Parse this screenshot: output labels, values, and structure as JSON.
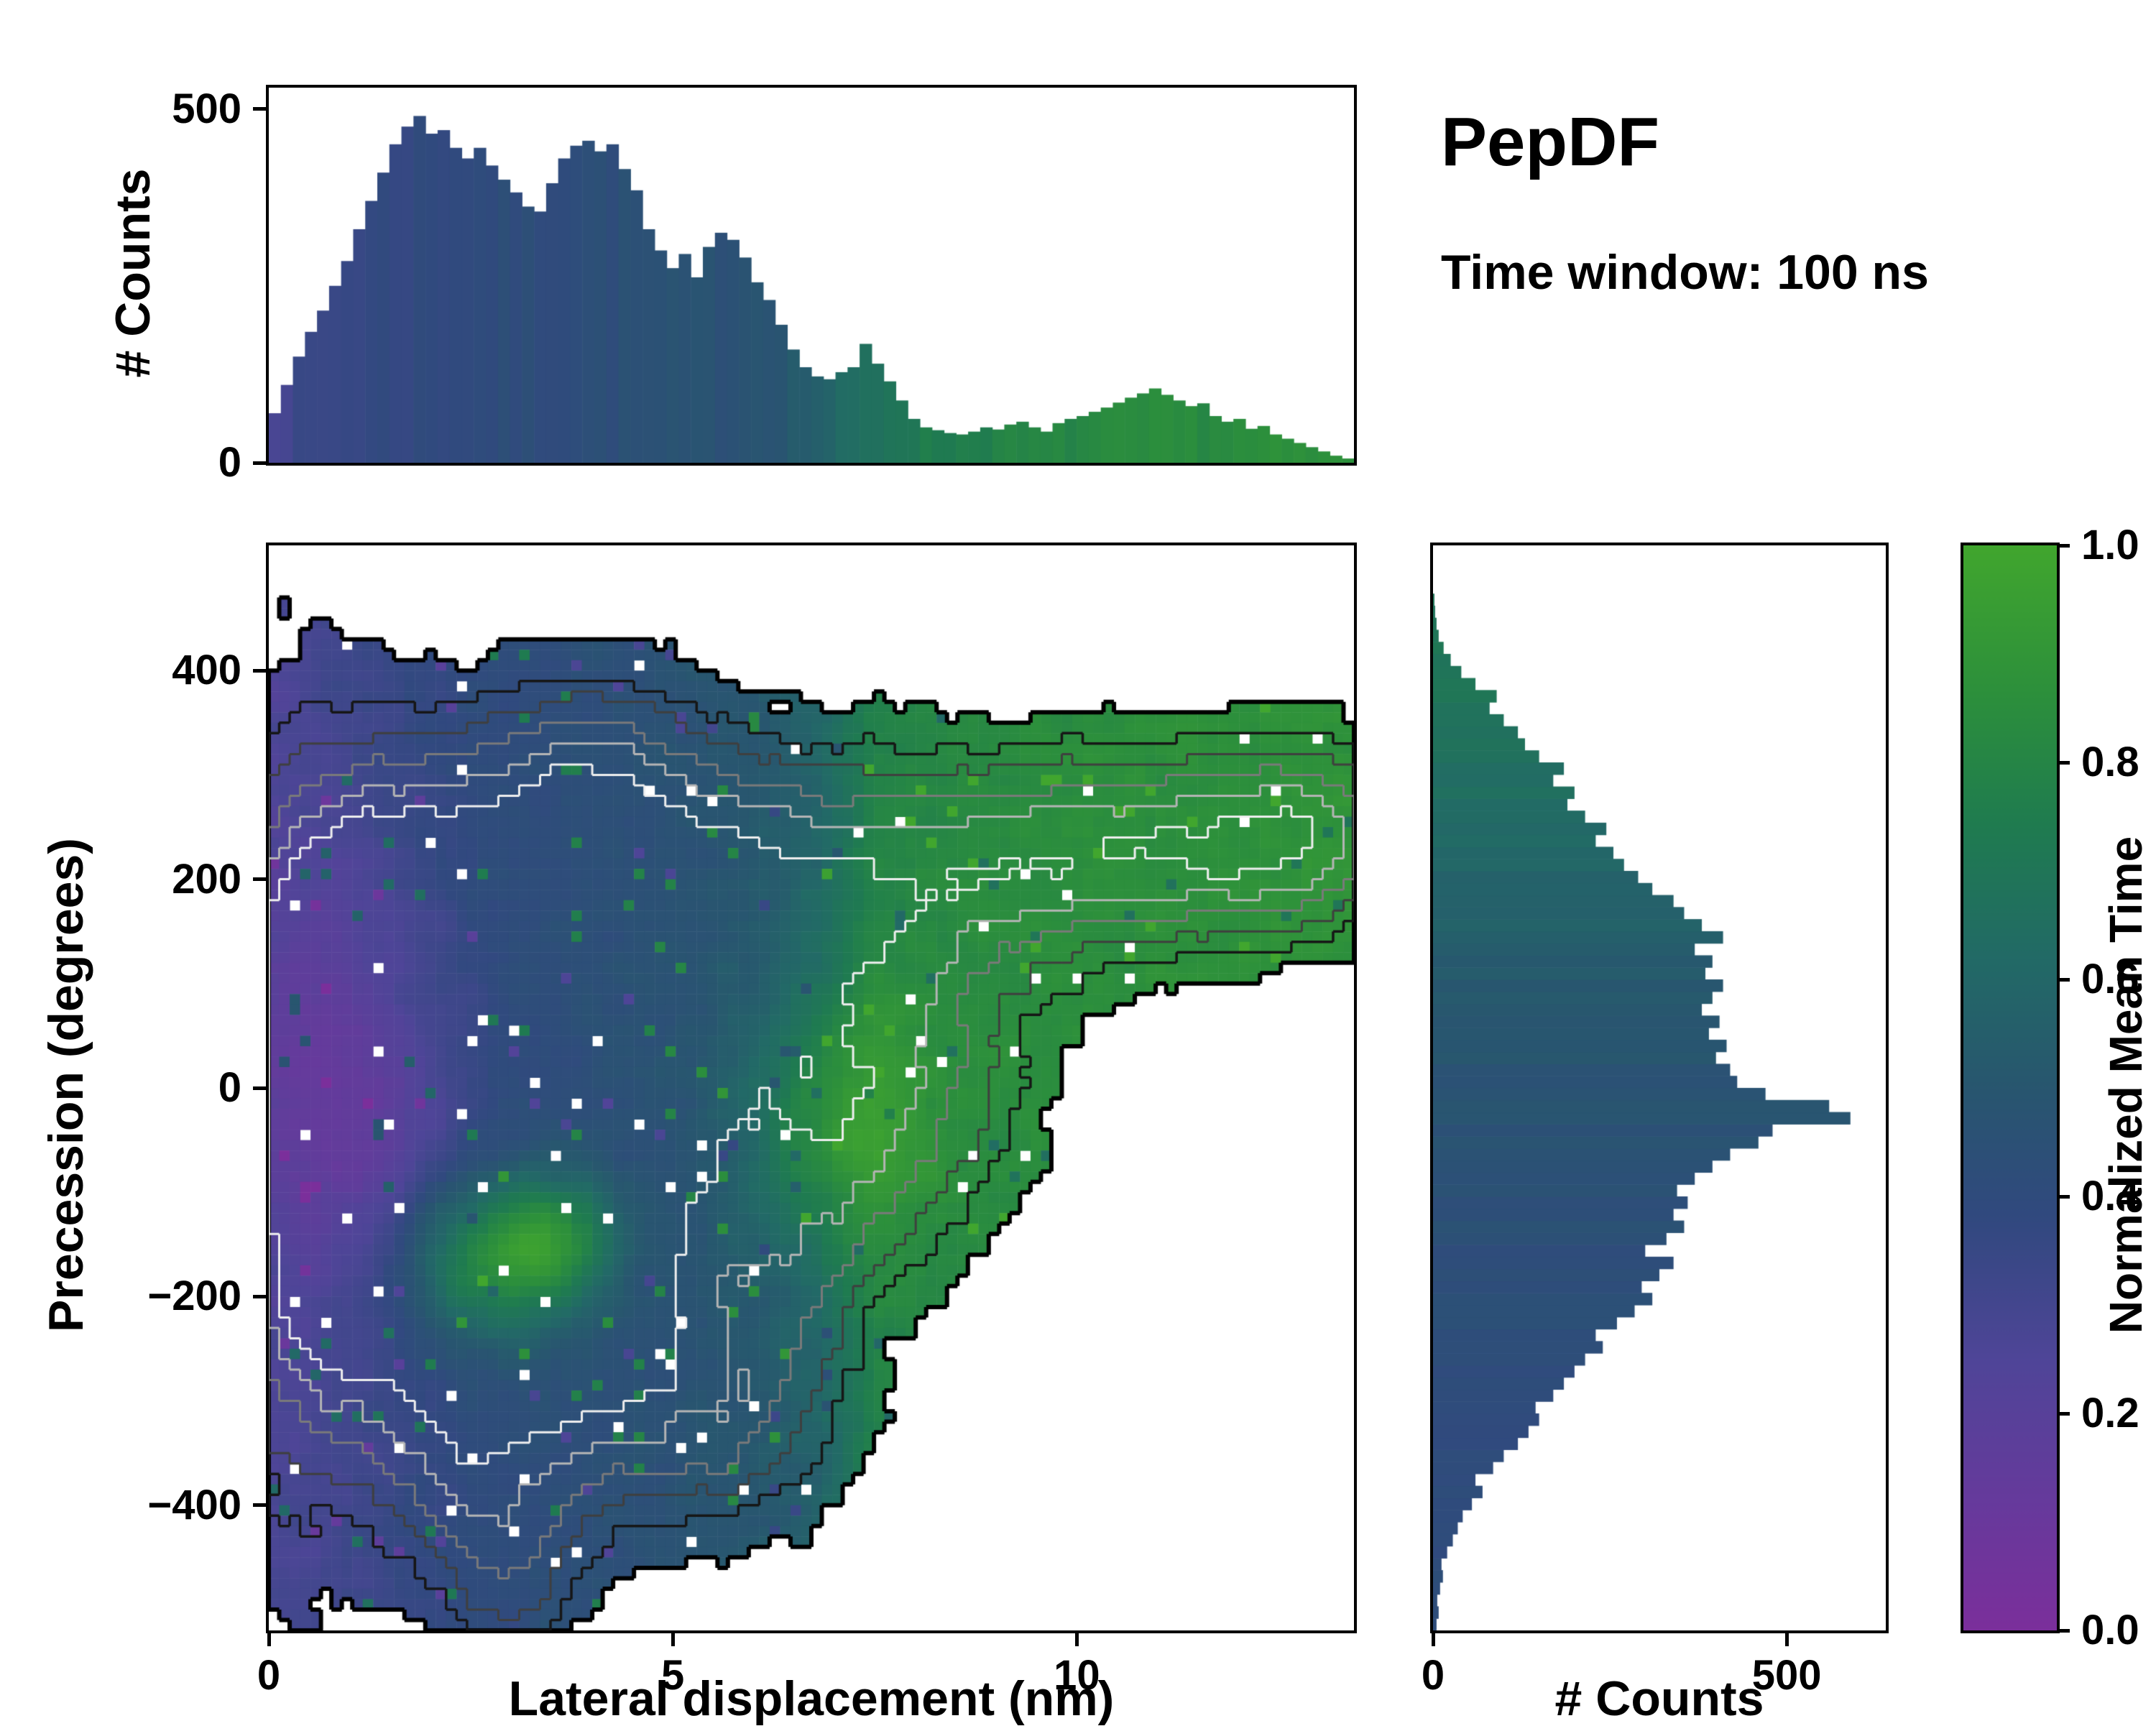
{
  "title": "PepDF",
  "annotation": "Time window: 100 ns",
  "chart_data": {
    "type": "heatmap",
    "description": "2D histogram of precession vs lateral displacement, colored by normalized mean time, with marginal count histograms and colorbar",
    "title": "PepDF",
    "annotation": "Time window: 100 ns",
    "main": {
      "xlabel": "Lateral displacement (nm)",
      "ylabel": "Precession (degrees)",
      "xlim": [
        0,
        13.43
      ],
      "ylim": [
        -520,
        520
      ],
      "xticks": {
        "values": [
          0,
          5,
          10
        ],
        "labels": [
          "0",
          "5",
          "10"
        ]
      },
      "yticks": {
        "values": [
          400,
          200,
          0,
          -200,
          -400
        ],
        "labels": [
          "400",
          "200",
          "0",
          "−200",
          "−400"
        ]
      }
    },
    "top_marginal": {
      "ylabel": "# Counts",
      "ylim": [
        0,
        530
      ],
      "yticks": {
        "values": [
          0,
          500
        ],
        "labels": [
          "0",
          "500"
        ]
      },
      "counts": [
        70,
        110,
        150,
        185,
        215,
        250,
        285,
        330,
        370,
        410,
        450,
        475,
        490,
        465,
        470,
        445,
        430,
        445,
        420,
        400,
        382,
        362,
        355,
        395,
        430,
        448,
        455,
        440,
        450,
        415,
        385,
        330,
        300,
        275,
        295,
        262,
        305,
        325,
        315,
        290,
        255,
        230,
        195,
        160,
        135,
        122,
        118,
        128,
        135,
        168,
        140,
        115,
        88,
        62,
        50,
        46,
        42,
        40,
        44,
        50,
        47,
        54,
        58,
        50,
        44,
        56,
        62,
        66,
        72,
        78,
        85,
        92,
        98,
        105,
        96,
        88,
        80,
        84,
        66,
        58,
        62,
        48,
        52,
        40,
        34,
        28,
        22,
        16,
        10,
        6
      ],
      "t_stops": [
        [
          0,
          0.3
        ],
        [
          1,
          0.36
        ],
        [
          2.5,
          0.4
        ],
        [
          4,
          0.43
        ],
        [
          5.5,
          0.46
        ],
        [
          6.5,
          0.52
        ],
        [
          7.2,
          0.62
        ],
        [
          7.8,
          0.72
        ],
        [
          9,
          0.78
        ],
        [
          10.5,
          0.82
        ],
        [
          13.43,
          0.86
        ]
      ],
      "seed": 7
    },
    "right_marginal": {
      "xlabel": "# Counts",
      "xlim": [
        0,
        640
      ],
      "xticks": {
        "values": [
          0,
          500
        ],
        "labels": [
          "0",
          "500"
        ]
      },
      "counts": [
        5,
        8,
        6,
        10,
        14,
        12,
        20,
        28,
        35,
        42,
        55,
        70,
        60,
        85,
        100,
        120,
        135,
        150,
        145,
        170,
        185,
        200,
        215,
        240,
        230,
        260,
        285,
        310,
        295,
        320,
        340,
        300,
        330,
        355,
        340,
        360,
        345,
        370,
        395,
        420,
        460,
        480,
        590,
        560,
        470,
        430,
        420,
        400,
        415,
        390,
        405,
        380,
        395,
        410,
        385,
        395,
        370,
        410,
        380,
        355,
        340,
        310,
        290,
        270,
        255,
        230,
        245,
        215,
        190,
        200,
        170,
        185,
        150,
        130,
        120,
        100,
        80,
        90,
        60,
        40,
        25,
        15,
        8,
        5,
        3,
        2,
        0,
        0,
        0,
        0
      ],
      "t_stops": [
        [
          -520,
          0.42
        ],
        [
          -380,
          0.4
        ],
        [
          -250,
          0.42
        ],
        [
          -120,
          0.44
        ],
        [
          -30,
          0.47
        ],
        [
          60,
          0.5
        ],
        [
          150,
          0.55
        ],
        [
          250,
          0.62
        ],
        [
          340,
          0.68
        ],
        [
          520,
          0.7
        ]
      ],
      "seed": 11
    },
    "colorbar": {
      "label": "Normalized Mean Time",
      "ticks": {
        "values": [
          1.0,
          0.8,
          0.6,
          0.4,
          0.2,
          0.0
        ],
        "labels": [
          "1.0",
          "0.8",
          "0.6",
          "0.4",
          "0.2",
          "0.0"
        ]
      },
      "stops": [
        [
          0,
          "#7b2f9b"
        ],
        [
          0.12,
          "#663a9c"
        ],
        [
          0.25,
          "#4f4598"
        ],
        [
          0.38,
          "#31497f"
        ],
        [
          0.5,
          "#28566f"
        ],
        [
          0.62,
          "#226a66"
        ],
        [
          0.74,
          "#1f7b50"
        ],
        [
          0.86,
          "#2c8f3c"
        ],
        [
          1,
          "#41a62e"
        ]
      ]
    },
    "heatmap_model": {
      "nx": 104,
      "ny": 104,
      "seed": 42,
      "noise": 0.16,
      "threshold": 0.22,
      "hole_p": 0.013,
      "t_noise": 0.07,
      "blobs": [
        {
          "x": 1.2,
          "y": 40,
          "sx": 1.05,
          "sy": 150,
          "a": 1.15
        },
        {
          "x": 3.0,
          "y": -20,
          "sx": 1.5,
          "sy": 170,
          "a": 1.2
        },
        {
          "x": 3.7,
          "y": -120,
          "sx": 1.2,
          "sy": 110,
          "a": 1.0
        },
        {
          "x": 2.2,
          "y": 160,
          "sx": 1.4,
          "sy": 110,
          "a": 0.9
        },
        {
          "x": 4.6,
          "y": 225,
          "sx": 1.7,
          "sy": 85,
          "a": 0.85
        },
        {
          "x": 5.6,
          "y": 60,
          "sx": 1.2,
          "sy": 140,
          "a": 0.9
        },
        {
          "x": 0.4,
          "y": -60,
          "sx": 0.9,
          "sy": 260,
          "a": 0.95
        },
        {
          "x": 7.5,
          "y": 120,
          "sx": 1.2,
          "sy": 110,
          "a": 0.7
        },
        {
          "x": 9.3,
          "y": 215,
          "sx": 1.8,
          "sy": 75,
          "a": 0.8
        },
        {
          "x": 11.3,
          "y": 235,
          "sx": 1.7,
          "sy": 65,
          "a": 0.8
        },
        {
          "x": 12.9,
          "y": 245,
          "sx": 1.0,
          "sy": 65,
          "a": 0.78
        },
        {
          "x": 8.2,
          "y": -30,
          "sx": 1.0,
          "sy": 95,
          "a": 0.55
        },
        {
          "x": 7.0,
          "y": -70,
          "sx": 0.8,
          "sy": 80,
          "a": 0.5
        },
        {
          "x": 4.2,
          "y": -280,
          "sx": 1.5,
          "sy": 95,
          "a": 0.7
        },
        {
          "x": 5.8,
          "y": -320,
          "sx": 1.0,
          "sy": 75,
          "a": 0.55
        },
        {
          "x": 2.6,
          "y": -240,
          "sx": 0.95,
          "sy": 85,
          "a": 0.6
        },
        {
          "x": 3.0,
          "y": -420,
          "sx": 0.75,
          "sy": 65,
          "a": 0.5
        },
        {
          "x": 2.2,
          "y": -365,
          "sx": 0.6,
          "sy": 60,
          "a": 0.45
        },
        {
          "x": 1.0,
          "y": -205,
          "sx": 0.7,
          "sy": 85,
          "a": 0.5
        },
        {
          "x": 6.6,
          "y": -180,
          "sx": 0.7,
          "sy": 70,
          "a": 0.4
        },
        {
          "x": 4.0,
          "y": 320,
          "sx": 0.8,
          "sy": 60,
          "a": 0.5
        },
        {
          "x": 2.9,
          "y": -490,
          "sx": 0.55,
          "sy": 45,
          "a": 0.42
        }
      ],
      "t_stops": [
        [
          0,
          0.27
        ],
        [
          1.2,
          0.33
        ],
        [
          2.5,
          0.4
        ],
        [
          4,
          0.44
        ],
        [
          5,
          0.46
        ],
        [
          6,
          0.5
        ],
        [
          6.8,
          0.58
        ],
        [
          7.5,
          0.78
        ],
        [
          9,
          0.84
        ],
        [
          13.43,
          0.88
        ]
      ],
      "t_patches": [
        {
          "x": 2.7,
          "y": -165,
          "sx": 0.75,
          "sy": 55,
          "a": 0.42
        },
        {
          "x": 3.6,
          "y": -145,
          "sx": 0.5,
          "sy": 40,
          "a": 0.3
        },
        {
          "x": 0.8,
          "y": 20,
          "sx": 0.9,
          "sy": 140,
          "a": -0.14
        },
        {
          "x": 1.6,
          "y": -60,
          "sx": 0.8,
          "sy": 100,
          "a": -0.08
        },
        {
          "x": 6.9,
          "y": -30,
          "sx": 0.8,
          "sy": 90,
          "a": 0.25
        }
      ],
      "contours": [
        {
          "level": 0.22,
          "color": "#000000",
          "width": 6
        },
        {
          "level": 0.45,
          "color": "#161616",
          "width": 3.5
        },
        {
          "level": 0.65,
          "color": "#3f3f3f",
          "width": 3
        },
        {
          "level": 0.9,
          "color": "#7a7a7a",
          "width": 3
        },
        {
          "level": 1.15,
          "color": "#b5b5b5",
          "width": 3
        },
        {
          "level": 1.4,
          "color": "#efefef",
          "width": 3
        }
      ]
    }
  }
}
